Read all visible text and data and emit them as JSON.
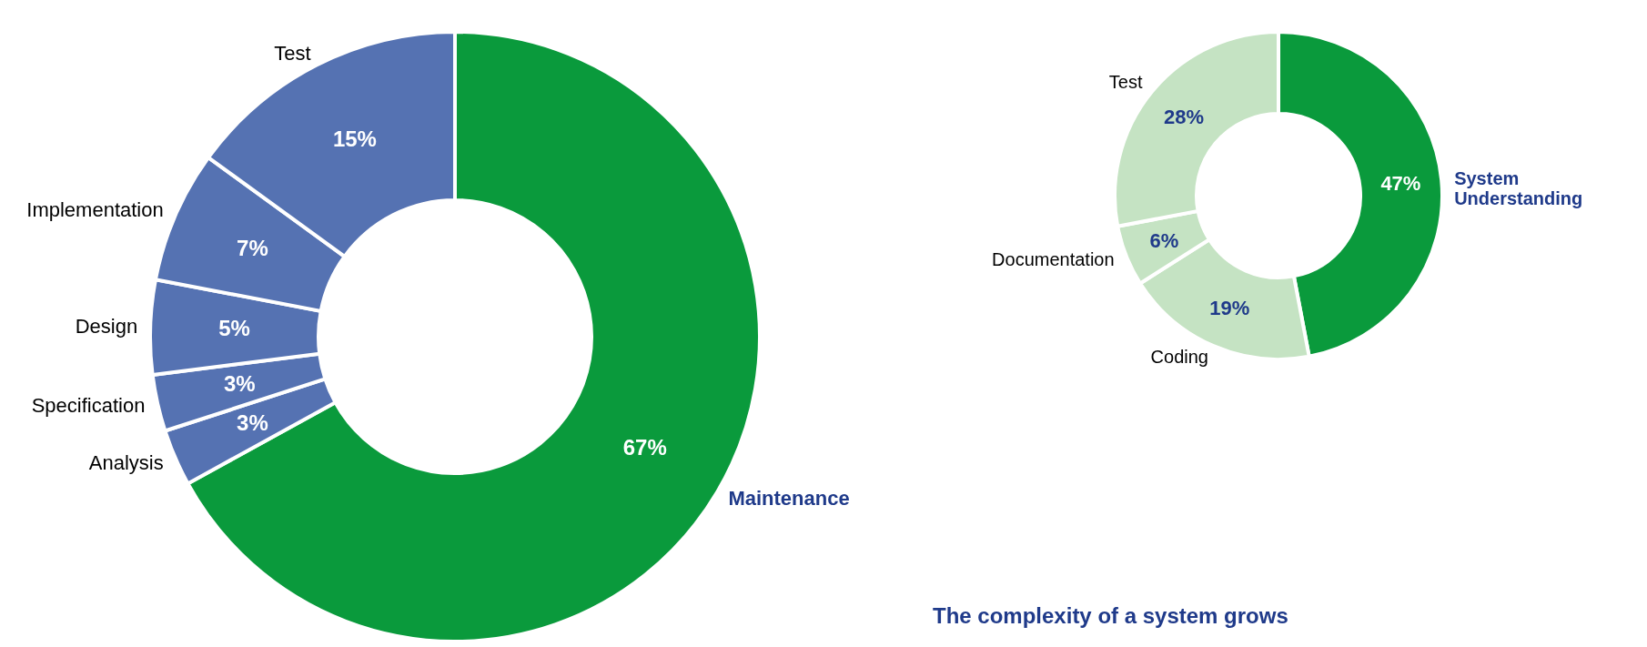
{
  "chart_data": [
    {
      "type": "donut",
      "categories": [
        "Maintenance",
        "Analysis",
        "Specification",
        "Design",
        "Implementation",
        "Test"
      ],
      "values": [
        67,
        3,
        3,
        5,
        7,
        15
      ],
      "colors": [
        "#0a9a3c",
        "#5572b2",
        "#5572b2",
        "#5572b2",
        "#5572b2",
        "#5572b2"
      ],
      "value_labels": [
        "67%",
        "3%",
        "3%",
        "5%",
        "7%",
        "15%"
      ]
    },
    {
      "type": "donut",
      "categories": [
        "System Understanding",
        "Coding",
        "Documentation",
        "Test"
      ],
      "values": [
        47,
        19,
        6,
        28
      ],
      "colors": [
        "#0a9a3c",
        "#c5e3c3",
        "#c5e3c3",
        "#c5e3c3"
      ],
      "value_labels": [
        "47%",
        "19%",
        "6%",
        "28%"
      ],
      "annotations": [
        "The complexity of a system grows"
      ]
    }
  ]
}
